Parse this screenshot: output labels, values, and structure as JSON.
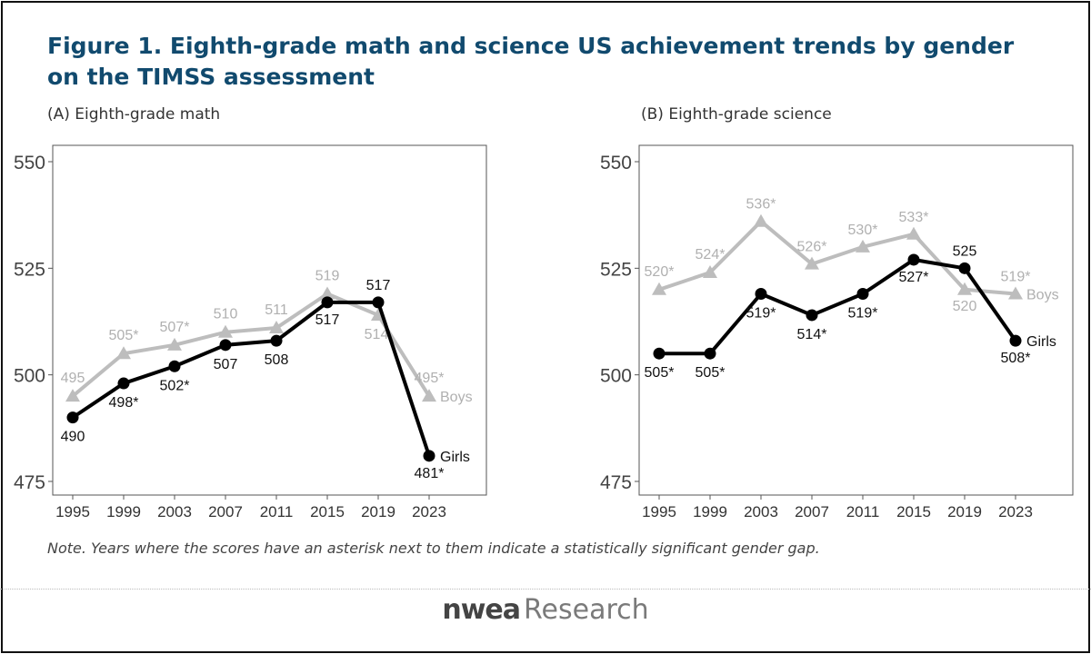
{
  "title": "Figure 1. Eighth-grade math and science US achievement trends by gender on the TIMSS assessment",
  "note": "Note. Years where the scores have an asterisk next to them indicate a statistically significant gender gap.",
  "logo": {
    "mark": "nwea",
    "word": "Research"
  },
  "colors": {
    "girls": "#000000",
    "boys": "#bdbdbd",
    "title": "#114a6e"
  },
  "chart_data": [
    {
      "type": "line",
      "title": "(A) Eighth-grade math",
      "x": [
        "1995",
        "1999",
        "2003",
        "2007",
        "2011",
        "2015",
        "2019",
        "2023"
      ],
      "ylim": [
        475,
        550
      ],
      "yticks": [
        "475",
        "500",
        "525",
        "550"
      ],
      "grid": false,
      "series": [
        {
          "name": "Boys",
          "marker": "triangle",
          "values": [
            495,
            505,
            507,
            510,
            511,
            519,
            514,
            495
          ],
          "labels": [
            "495",
            "505*",
            "507*",
            "510",
            "511",
            "519",
            "514",
            "495*"
          ]
        },
        {
          "name": "Girls",
          "marker": "circle",
          "values": [
            490,
            498,
            502,
            507,
            508,
            517,
            517,
            481
          ],
          "labels": [
            "490",
            "498*",
            "502*",
            "507",
            "508",
            "517",
            "517",
            "481*"
          ]
        }
      ]
    },
    {
      "type": "line",
      "title": "(B) Eighth-grade science",
      "x": [
        "1995",
        "1999",
        "2003",
        "2007",
        "2011",
        "2015",
        "2019",
        "2023"
      ],
      "ylim": [
        475,
        550
      ],
      "yticks": [
        "475",
        "500",
        "525",
        "550"
      ],
      "grid": false,
      "series": [
        {
          "name": "Boys",
          "marker": "triangle",
          "values": [
            520,
            524,
            536,
            526,
            530,
            533,
            520,
            519
          ],
          "labels": [
            "520*",
            "524*",
            "536*",
            "526*",
            "530*",
            "533*",
            "520",
            "519*"
          ]
        },
        {
          "name": "Girls",
          "marker": "circle",
          "values": [
            505,
            505,
            519,
            514,
            519,
            527,
            525,
            508
          ],
          "labels": [
            "505*",
            "505*",
            "519*",
            "514*",
            "519*",
            "527*",
            "525",
            "508*"
          ]
        }
      ]
    }
  ]
}
